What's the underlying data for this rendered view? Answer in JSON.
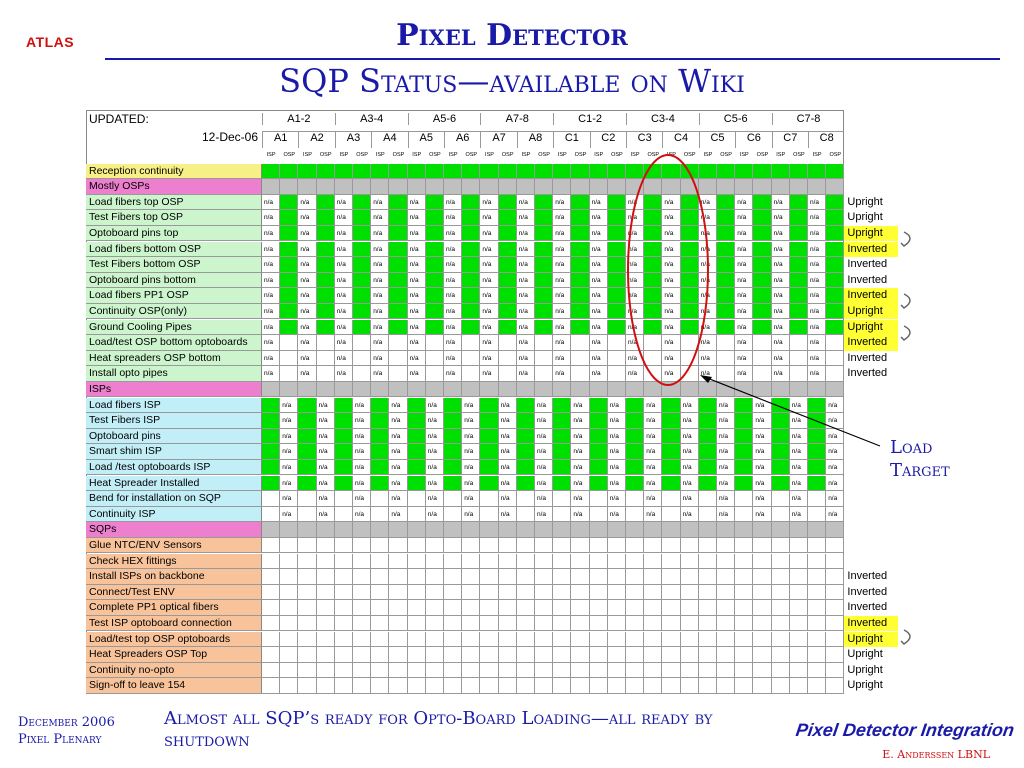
{
  "header": {
    "logo": "ATLAS",
    "title": "Pixel Detector",
    "subtitle": "SQP Status—available on Wiki"
  },
  "sheet": {
    "updated_label": "UPDATED:",
    "date": "12-Dec-06",
    "groups": [
      "A1-2",
      "A3-4",
      "A5-6",
      "A7-8",
      "C1-2",
      "C3-4",
      "C5-6",
      "C7-8"
    ],
    "sqps": [
      "A1",
      "A2",
      "A3",
      "A4",
      "A5",
      "A6",
      "A7",
      "A8",
      "C1",
      "C2",
      "C3",
      "C4",
      "C5",
      "C6",
      "C7",
      "C8"
    ],
    "subheads": [
      "ISP",
      "OSP"
    ],
    "na": "n/a",
    "rows": [
      {
        "label": "Reception continuity",
        "status": ""
      },
      {
        "label": "Mostly OSPs",
        "status": ""
      },
      {
        "label": "Load fibers top OSP",
        "status": "Upright"
      },
      {
        "label": "Test Fibers top OSP",
        "status": "Upright"
      },
      {
        "label": "Optoboard pins top",
        "status": "Upright"
      },
      {
        "label": "Load fibers bottom OSP",
        "status": "Inverted"
      },
      {
        "label": "Test Fibers bottom OSP",
        "status": "Inverted"
      },
      {
        "label": "Optoboard pins bottom",
        "status": "Inverted"
      },
      {
        "label": "Load fibers PP1 OSP",
        "status": "Inverted"
      },
      {
        "label": "Continuity OSP(only)",
        "status": "Upright"
      },
      {
        "label": "Ground Cooling Pipes",
        "status": "Upright"
      },
      {
        "label": "Load/test OSP bottom optoboards",
        "status": "Inverted"
      },
      {
        "label": "Heat spreaders OSP bottom",
        "status": "Inverted"
      },
      {
        "label": "Install opto pipes",
        "status": "Inverted"
      },
      {
        "label": "ISPs",
        "status": ""
      },
      {
        "label": "Load fibers ISP",
        "status": ""
      },
      {
        "label": "Test Fibers ISP",
        "status": ""
      },
      {
        "label": "Optoboard pins",
        "status": ""
      },
      {
        "label": "Smart shim ISP",
        "status": ""
      },
      {
        "label": "Load /test optoboards ISP",
        "status": ""
      },
      {
        "label": "Heat Spreader Installed",
        "status": ""
      },
      {
        "label": "Bend for installation on SQP",
        "status": ""
      },
      {
        "label": "Continuity ISP",
        "status": ""
      },
      {
        "label": "SQPs",
        "status": ""
      },
      {
        "label": "Glue NTC/ENV Sensors",
        "status": ""
      },
      {
        "label": "Check HEX fittings",
        "status": ""
      },
      {
        "label": "Install ISPs on backbone",
        "status": "Inverted"
      },
      {
        "label": "Connect/Test ENV",
        "status": "Inverted"
      },
      {
        "label": "Complete PP1 optical fibers",
        "status": "Inverted"
      },
      {
        "label": "Test ISP optoboard connection",
        "status": "Inverted"
      },
      {
        "label": "Load/test top OSP optoboards",
        "status": "Upright"
      },
      {
        "label": "Heat Spreaders OSP Top",
        "status": "Upright"
      },
      {
        "label": "Continuity no-opto",
        "status": "Upright"
      },
      {
        "label": "Sign-off to leave 154",
        "status": "Upright"
      }
    ]
  },
  "callout": {
    "line1": "Load",
    "line2": "Target"
  },
  "footer": {
    "date": "December 2006",
    "meeting": "Pixel Plenary",
    "message": "Almost all SQP’s ready for Opto-Board Loading—all ready by shutdown",
    "brand": "Pixel Detector Integration",
    "author": "E. Anderssen LBNL"
  },
  "colors": {
    "title": "#1a1aa8",
    "logo": "#d01010",
    "done": "#00e000",
    "section_gray": "#c0c0c0",
    "ring": "#d01010"
  }
}
